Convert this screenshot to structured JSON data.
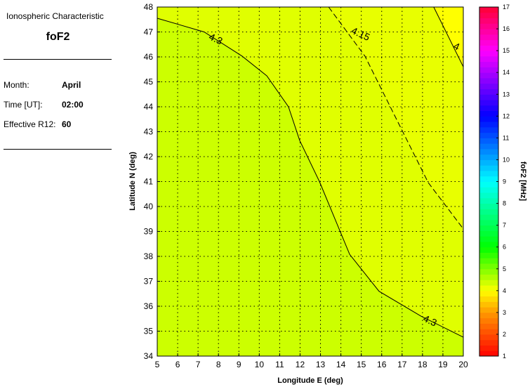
{
  "panel": {
    "title": "Ionospheric Characteristic",
    "characteristic": "foF2",
    "month_label": "Month:",
    "month": "April",
    "time_label": "Time [UT]:",
    "time": "02:00",
    "r12_label": "Effective R12:",
    "r12": "60"
  },
  "chart_data": {
    "type": "heatmap",
    "subtype": "contour map",
    "xlabel": "Longitude E (deg)",
    "ylabel": "Latitude N (deg)",
    "xlim": [
      5,
      20
    ],
    "ylim": [
      34,
      48
    ],
    "xticks": [
      5,
      6,
      7,
      8,
      9,
      10,
      11,
      12,
      13,
      14,
      15,
      16,
      17,
      18,
      19,
      20
    ],
    "yticks": [
      34,
      35,
      36,
      37,
      38,
      39,
      40,
      41,
      42,
      43,
      44,
      45,
      46,
      47,
      48
    ],
    "grid": true,
    "colorbar": {
      "label": "foF2 [MHz]",
      "range": [
        1,
        17
      ],
      "ticks": [
        1,
        2,
        3,
        4,
        5,
        6,
        7,
        8,
        9,
        10,
        11,
        12,
        13,
        14,
        15,
        16,
        17
      ]
    },
    "region_colors": {
      "above_4.3": "#ccff00",
      "4.15_to_4.3": "#e0ff00",
      "4_to_4.15": "#e8ff00",
      "below_4": "#ffff00"
    },
    "contours": [
      {
        "level": "4.3",
        "style": "solid",
        "points": [
          [
            5,
            47.55
          ],
          [
            7.3,
            47.0
          ],
          [
            9.16,
            46.03
          ],
          [
            10.37,
            45.24
          ],
          [
            11.43,
            44.0
          ],
          [
            11.98,
            42.65
          ],
          [
            12.95,
            41.0
          ],
          [
            14.43,
            38.08
          ],
          [
            15.87,
            36.6
          ],
          [
            17.93,
            35.6
          ],
          [
            20,
            34.76
          ]
        ]
      },
      {
        "level": "4.15",
        "style": "dashed",
        "points": [
          [
            13.4,
            48
          ],
          [
            15.18,
            46.03
          ],
          [
            16.56,
            43.77
          ],
          [
            18.28,
            40.96
          ],
          [
            20,
            39.1
          ]
        ]
      },
      {
        "level": "4",
        "style": "solid",
        "points": [
          [
            18.55,
            48
          ],
          [
            20,
            45.6
          ]
        ]
      }
    ],
    "contour_labels": [
      {
        "text": "4.3",
        "at": [
          7.8,
          46.6
        ]
      },
      {
        "text": "4.3",
        "at": [
          18.3,
          35.3
        ]
      },
      {
        "text": "4.15",
        "at": [
          14.9,
          46.8
        ]
      },
      {
        "text": "4",
        "at": [
          19.6,
          46.3
        ]
      }
    ]
  }
}
